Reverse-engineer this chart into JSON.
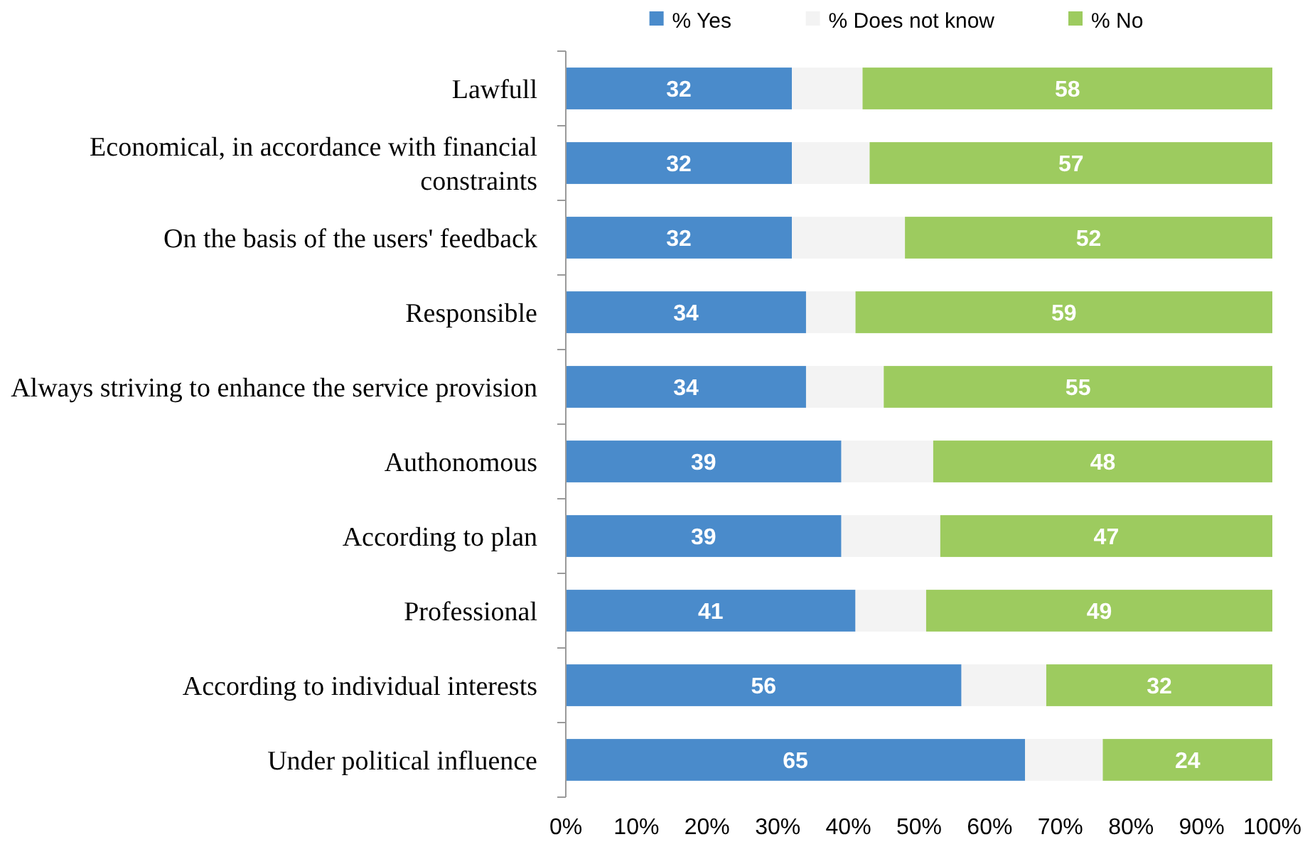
{
  "chart_data": {
    "type": "bar",
    "orientation": "horizontal",
    "stacked": true,
    "legend": "top",
    "grid": false,
    "categories": [
      "Lawfull",
      "Economical, in accordance with financial constraints",
      "On the basis of the users' feedback",
      "Responsible",
      "Always striving to enhance the service provision",
      "Authonomous",
      "According to plan",
      "Professional",
      "According to individual interests",
      "Under political influence"
    ],
    "series": [
      {
        "name": "% Yes",
        "color": "#4a8bcb",
        "values": [
          32,
          32,
          32,
          34,
          34,
          39,
          39,
          41,
          56,
          65
        ],
        "value_labels": [
          "32",
          "32",
          "32",
          "34",
          "34",
          "39",
          "39",
          "41",
          "56",
          "65"
        ]
      },
      {
        "name": "% Does not know",
        "color": "#f3f3f3",
        "values": [
          10,
          11,
          16,
          7,
          11,
          13,
          14,
          10,
          12,
          11
        ]
      },
      {
        "name": "% No",
        "color": "#9dcb5f",
        "values": [
          58,
          57,
          52,
          59,
          55,
          48,
          47,
          49,
          32,
          24
        ],
        "value_labels": [
          "58",
          "57",
          "52",
          "59",
          "55",
          "48",
          "47",
          "49",
          "32",
          "24"
        ]
      }
    ],
    "xlim": [
      0,
      100
    ],
    "xticks": [
      {
        "value": 0,
        "label": "0%"
      },
      {
        "value": 10,
        "label": "10%"
      },
      {
        "value": 20,
        "label": "20%"
      },
      {
        "value": 30,
        "label": "30%"
      },
      {
        "value": 40,
        "label": "40%"
      },
      {
        "value": 50,
        "label": "50%"
      },
      {
        "value": 60,
        "label": "60%"
      },
      {
        "value": 70,
        "label": "70%"
      },
      {
        "value": 80,
        "label": "80%"
      },
      {
        "value": 90,
        "label": "90%"
      },
      {
        "value": 100,
        "label": "100%"
      }
    ]
  }
}
